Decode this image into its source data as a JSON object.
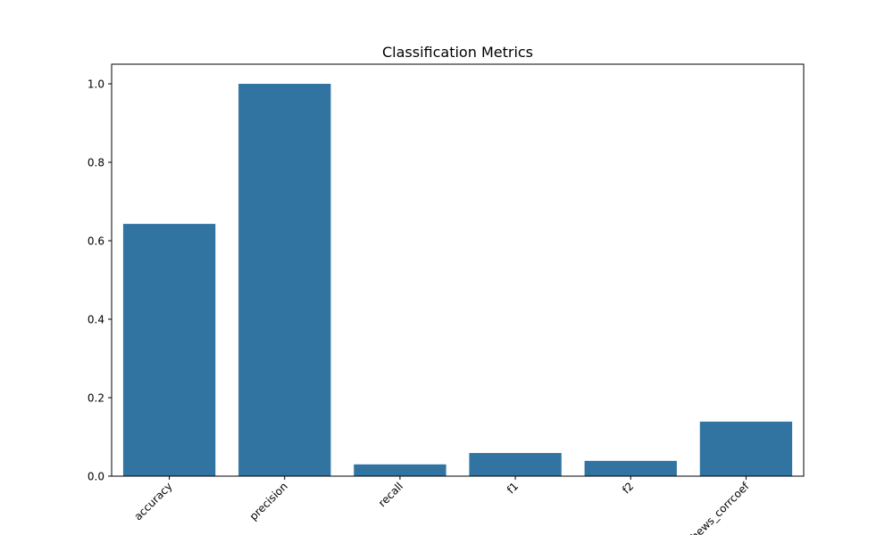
{
  "chart_data": {
    "type": "bar",
    "title": "Classification Metrics",
    "xlabel": "",
    "ylabel": "",
    "categories": [
      "accuracy",
      "precision",
      "recall",
      "f1",
      "f2",
      "matthews_corrcoef"
    ],
    "values": [
      0.643,
      1.0,
      0.03,
      0.059,
      0.039,
      0.139
    ],
    "ylim": [
      0,
      1.05
    ],
    "yticks": [
      0.0,
      0.2,
      0.4,
      0.6,
      0.8,
      1.0
    ],
    "ytick_labels": [
      "0.0",
      "0.2",
      "0.4",
      "0.6",
      "0.8",
      "1.0"
    ],
    "xtick_rotation_deg": 45,
    "grid": false,
    "legend": "none",
    "colors": {
      "bar": "#3274a1",
      "axis": "#000000",
      "background": "#ffffff"
    }
  }
}
